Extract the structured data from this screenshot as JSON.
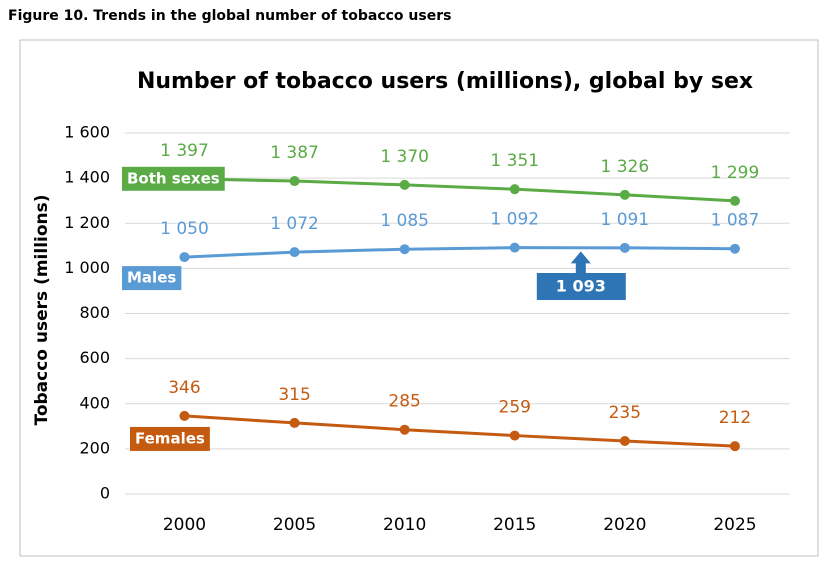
{
  "caption": "Figure 10. Trends in the global number of tobacco users",
  "chart_data": {
    "type": "line",
    "title": "Number of tobacco users (millions), global by sex",
    "y_label": "Tobacco users (millions)",
    "x": [
      2000,
      2005,
      2010,
      2015,
      2020,
      2025
    ],
    "xlim": [
      1997.3,
      2027.5
    ],
    "xticks": [
      2000,
      2005,
      2010,
      2015,
      2020,
      2025
    ],
    "ylim": [
      0,
      1600
    ],
    "yticks": [
      0,
      200,
      400,
      600,
      800,
      {
        "value": 1000,
        "label": "1 000"
      },
      {
        "value": 1200,
        "label": "1 200"
      },
      {
        "value": 1400,
        "label": "1 400"
      },
      {
        "value": 1600,
        "label": "1 600"
      }
    ],
    "grid": true,
    "series": [
      {
        "name": "Both sexes",
        "color": "#5aab46",
        "values": [
          1397,
          1387,
          1370,
          1351,
          1326,
          1299
        ],
        "value_labels": [
          "1 397",
          "1 387",
          "1 370",
          "1 351",
          "1 326",
          "1 299"
        ]
      },
      {
        "name": "Males",
        "color": "#5b9bd5",
        "values": [
          1050,
          1072,
          1085,
          1092,
          1091,
          1087
        ],
        "value_labels": [
          "1 050",
          "1 072",
          "1 085",
          "1 092",
          "1 091",
          "1 087"
        ]
      },
      {
        "name": "Females",
        "color": "#c55a11",
        "values": [
          346,
          315,
          285,
          259,
          235,
          212
        ]
      }
    ],
    "annotation": {
      "text": "1 093",
      "x": 2018,
      "value": 1093,
      "color": "#2e75b6"
    }
  }
}
